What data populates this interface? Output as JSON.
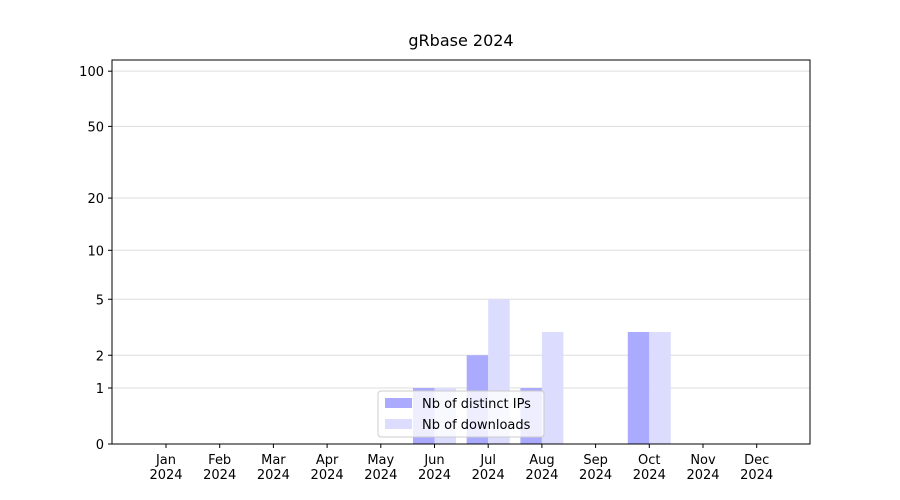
{
  "chart_data": {
    "type": "bar",
    "title": "gRbase 2024",
    "categories": [
      "Jan\n2024",
      "Feb\n2024",
      "Mar\n2024",
      "Apr\n2024",
      "May\n2024",
      "Jun\n2024",
      "Jul\n2024",
      "Aug\n2024",
      "Sep\n2024",
      "Oct\n2024",
      "Nov\n2024",
      "Dec\n2024"
    ],
    "series": [
      {
        "name": "Nb of distinct IPs",
        "color": "#aaaaff",
        "values": [
          0,
          0,
          0,
          0,
          0,
          1,
          2,
          1,
          0,
          3,
          0,
          0
        ]
      },
      {
        "name": "Nb of downloads",
        "color": "#dcdcff",
        "values": [
          0,
          0,
          0,
          0,
          0,
          1,
          5,
          3,
          0,
          3,
          0,
          0
        ]
      }
    ],
    "yscale": "log1p",
    "ylim": [
      0,
      115
    ],
    "yticks": [
      0,
      1,
      2,
      5,
      10,
      20,
      50,
      100
    ],
    "grid": true,
    "legend": "lower center"
  }
}
